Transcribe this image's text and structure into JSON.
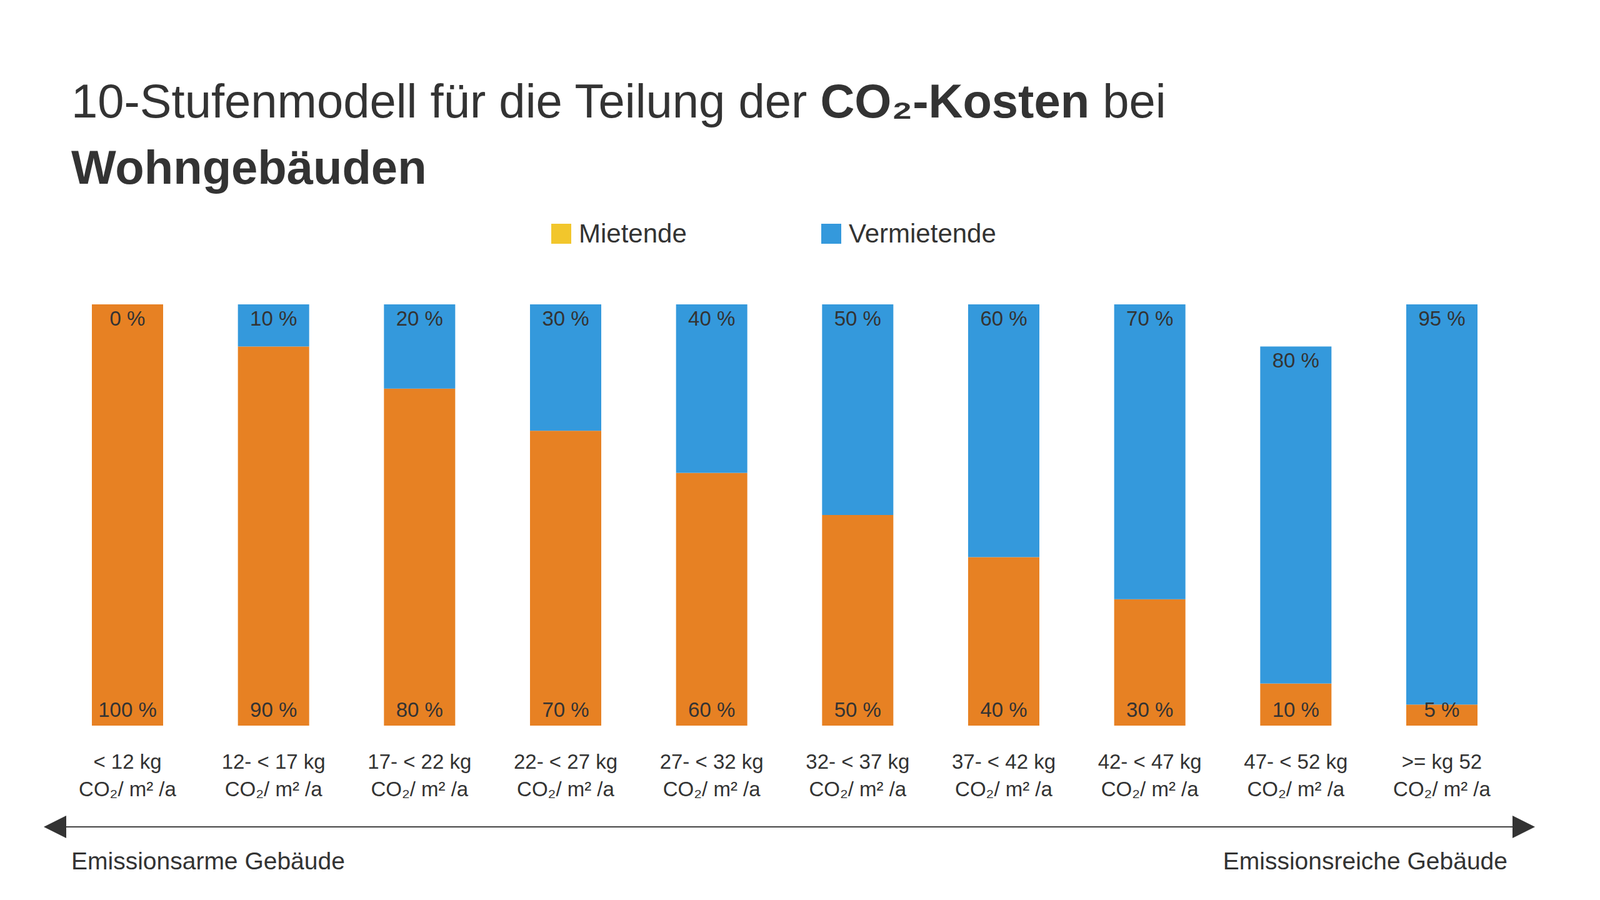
{
  "chart_data": {
    "type": "bar",
    "title": [
      "10-Stufenmodell für die Teilung der ",
      "CO₂-Kosten",
      " bei",
      "Wohngebäuden"
    ],
    "categories": [
      "< 12 kg\nCO₂/ m² /a",
      "12- < 17 kg\nCO₂/ m² /a",
      "17- < 22 kg\nCO₂/ m² /a",
      "22- < 27 kg\nCO₂/ m² /a",
      "27- < 32 kg\nCO₂/ m² /a",
      "32- < 37 kg\nCO₂/ m² /a",
      "37- < 42 kg\nCO₂/ m² /a",
      "42- < 47 kg\nCO₂/ m² /a",
      "47- < 52 kg\nCO₂/ m² /a",
      ">=  kg 52\nCO₂/ m² /a"
    ],
    "series": [
      {
        "name": "Mietende",
        "color": "#f2c62c",
        "colors": [
          "#e78123",
          "#e78123",
          "#e78123",
          "#e78123",
          "#e78123",
          "#e78123",
          "#e78123",
          "#e78123",
          "#e78123",
          "#e78123"
        ],
        "values": [
          100,
          90,
          80,
          70,
          60,
          50,
          40,
          30,
          10,
          5
        ],
        "value_labels": [
          "100 %",
          "90 %",
          "80 %",
          "70 %",
          "60 %",
          "50 %",
          "40 %",
          "30 %",
          "10 %",
          "5 %"
        ]
      },
      {
        "name": "Vermietende",
        "color": "#3499dc",
        "values": [
          0,
          10,
          20,
          30,
          40,
          50,
          60,
          70,
          80,
          95
        ],
        "value_labels": [
          "0 %",
          "10 %",
          "20 %",
          "30 %",
          "40 %",
          "50 %",
          "60 %",
          "70 %",
          "80 %",
          "95 %"
        ]
      }
    ],
    "annotations": [
      "Emissionsarme Gebäude",
      "Emissionsreiche Gebäude"
    ],
    "ylim": [
      0,
      100
    ],
    "stacked": true,
    "data_labels": true,
    "tick_labels": "x",
    "grid": false,
    "legend": "top"
  }
}
